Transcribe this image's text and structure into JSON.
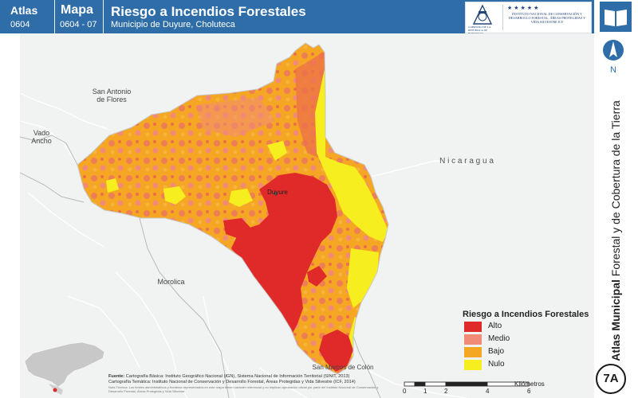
{
  "header": {
    "atlas_label": "Atlas",
    "atlas_number": "0604",
    "mapa_label": "Mapa",
    "mapa_number": "0604 - 07",
    "title": "Riesgo a Incendios Forestales",
    "subtitle": "Municipio de Duyure, Choluteca",
    "logo_left_text": "GOBIERNO DE LA REPÚBLICA DE HONDURAS",
    "logo_right_text": "INSTITUTO NACIONAL DE CONSERVACIÓN Y DESARROLLO FORESTAL, ÁREAS PROTEGIDAS Y VIDA SILVESTRE ICF"
  },
  "side": {
    "title_bold": "Atlas Municipal",
    "title_rest": " Forestal y de Cobertura de la Tierra",
    "north_label": "N",
    "badge": "7A"
  },
  "places": {
    "san_antonio": "San Antonio\nde Flores",
    "vado_ancho": "Vado\nAncho",
    "nicaragua": "N i c a r a g u a",
    "duyure": "Duyure",
    "morolica": "Morolica",
    "san_marcos": "San Marcos de Colón"
  },
  "legend": {
    "title": "Riesgo a Incendios Forestales",
    "items": [
      {
        "label": "Alto",
        "color": "#e02a2a"
      },
      {
        "label": "Medio",
        "color": "#f28a78"
      },
      {
        "label": "Bajo",
        "color": "#f5a623"
      },
      {
        "label": "Nulo",
        "color": "#f7ee1f"
      }
    ]
  },
  "source": {
    "label": "Fuente:",
    "line1": "Cartografía Básica: Instituto Geográfico Nacional (IGN), Sistema Nacional de Información Territorial (SINIT, 2013)",
    "line2": "Cartografía Temática: Instituto Nacional de Conservación y Desarrollo Forestal, Áreas Protegidas y Vida Silvestre (ICF, 2014)",
    "note": "Nota Técnica: Los límites administrativos y fronteras representados en este mapa tienen carácter referencial y no implican aprobación oficial por parte del Instituto Nacional de Conservación y Desarrollo Forestal, Áreas Protegidas y Vida Silvestre."
  },
  "scale": {
    "ticks": [
      "0",
      "1",
      "2",
      "4",
      "6"
    ],
    "unit": "Kilómetros"
  },
  "colors": {
    "header_blue": "#2e6da8",
    "outside_gray": "#f1f2f2",
    "road_white": "#ffffff"
  }
}
